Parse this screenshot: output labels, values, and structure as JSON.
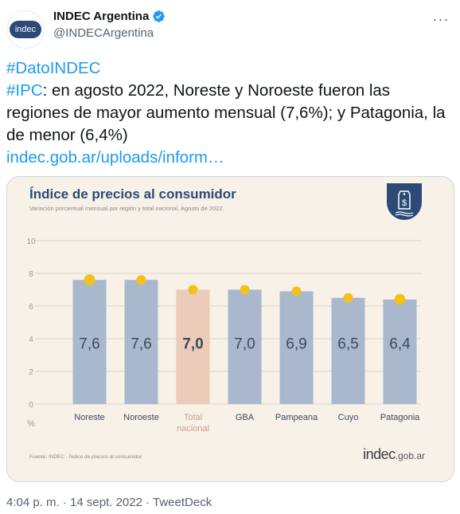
{
  "tweet": {
    "author_name": "INDEC Argentina",
    "author_handle": "@INDECArgentina",
    "avatar_text": "indec",
    "more_label": "···",
    "line1_hashtag": "#DatoINDEC",
    "line2_hashtag": "#IPC",
    "line2_text": ": en agosto 2022, Noreste y Noroeste fueron las regiones de mayor aumento mensual (7,6%); y Patagonia, la de menor (6,4%)",
    "link_text": "indec.gob.ar/uploads/inform…",
    "timestamp": "4:04 p. m. · 14 sept. 2022 · TweetDeck"
  },
  "card": {
    "title": "Índice de precios al consumidor",
    "subtitle": "Variación porcentual mensual por región y total nacional. Agosto de 2022.",
    "source": "Fuente: INDEC - Índice de precios al consumidor",
    "brand_main": "indec",
    "brand_sub": ".gob.ar"
  },
  "chart_data": {
    "type": "bar",
    "title": "Índice de precios al consumidor",
    "subtitle": "Variación porcentual mensual por región y total nacional. Agosto de 2022.",
    "ylabel": "%",
    "ylim": [
      0,
      10
    ],
    "yticks": [
      "0",
      "2",
      "4",
      "6",
      "8",
      "10"
    ],
    "grid": true,
    "categories": [
      "Noreste",
      "Noroeste",
      "Total nacional",
      "GBA",
      "Pampeana",
      "Cuyo",
      "Patagonia"
    ],
    "values": [
      7.6,
      7.6,
      7.0,
      7.0,
      6.9,
      6.5,
      6.4
    ],
    "value_labels": [
      "7,6",
      "7,6",
      "7,0",
      "7,0",
      "6,9",
      "6,5",
      "6,4"
    ],
    "highlight_index": 2,
    "colors": {
      "bar": "#a9b8cc",
      "highlight_bar": "#ecccb9",
      "dot": "#f2c21a",
      "label": "#3c4a5c",
      "grid": "#d9d2c6"
    }
  }
}
